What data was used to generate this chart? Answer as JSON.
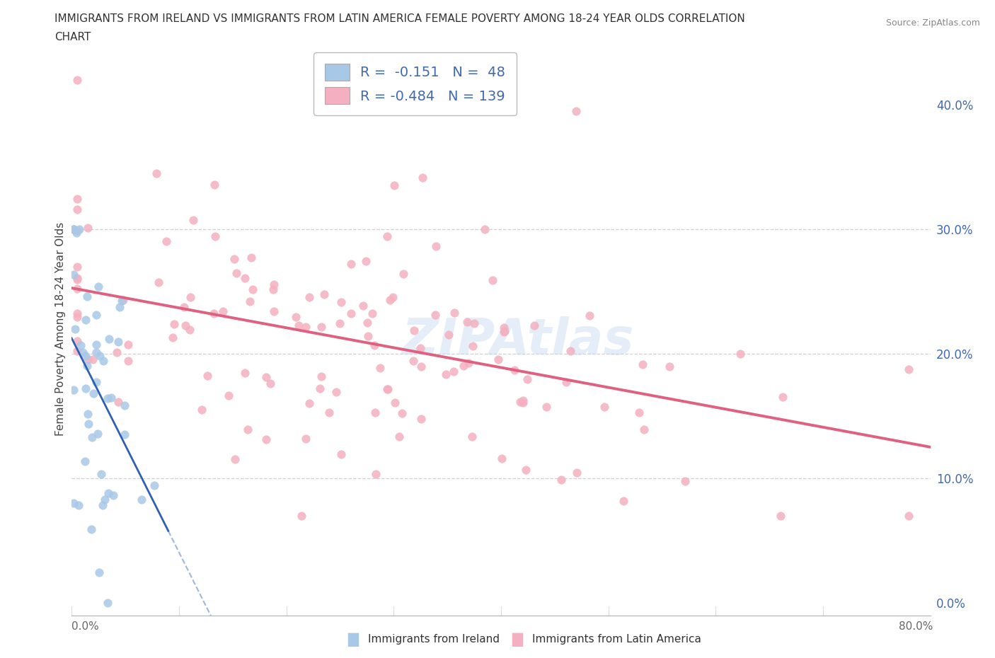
{
  "title_line1": "IMMIGRANTS FROM IRELAND VS IMMIGRANTS FROM LATIN AMERICA FEMALE POVERTY AMONG 18-24 YEAR OLDS CORRELATION",
  "title_line2": "CHART",
  "source": "Source: ZipAtlas.com",
  "ylabel": "Female Poverty Among 18-24 Year Olds",
  "xlim": [
    0.0,
    0.8
  ],
  "ylim": [
    -0.01,
    0.45
  ],
  "xticks_minor": [
    0.0,
    0.1,
    0.2,
    0.3,
    0.4,
    0.5,
    0.6,
    0.7,
    0.8
  ],
  "yticks": [
    0.0,
    0.1,
    0.2,
    0.3,
    0.4
  ],
  "ireland_color": "#a8c8e8",
  "ireland_line_color": "#3060b0",
  "ireland_line_dash_color": "#a0b8d8",
  "latin_color": "#f4b0c0",
  "latin_line_color": "#e06080",
  "ireland_R": -0.151,
  "ireland_N": 48,
  "latin_R": -0.484,
  "latin_N": 139,
  "footer_label_ireland": "Immigrants from Ireland",
  "footer_label_latin": "Immigrants from Latin America",
  "watermark": "ZIPAtlas",
  "text_color": "#4169b0",
  "grid_color": "#d0d0d0"
}
